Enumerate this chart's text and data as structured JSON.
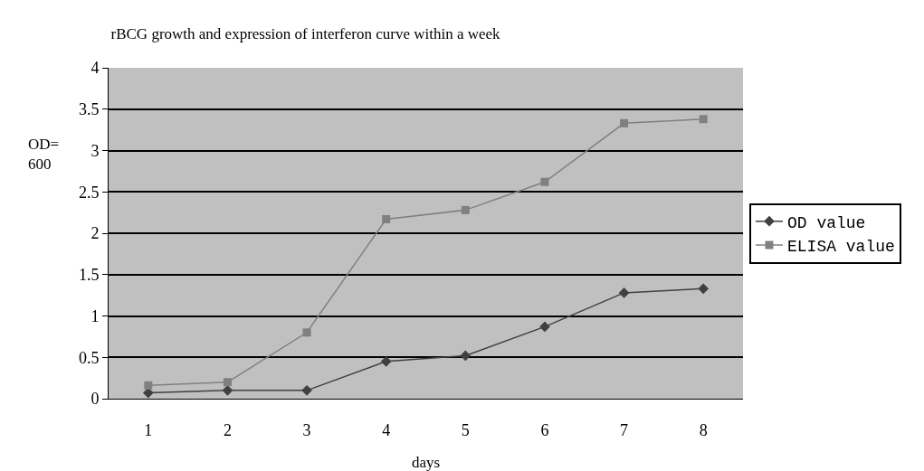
{
  "chart_data": {
    "type": "line",
    "title": "rBCG growth and expression of interferon curve within a week",
    "xlabel": "days",
    "ylabel": "OD=\n600",
    "categories": [
      "1",
      "2",
      "3",
      "4",
      "5",
      "6",
      "7",
      "8"
    ],
    "series": [
      {
        "name": "OD value",
        "color": "#404040",
        "marker": "diamond",
        "values": [
          0.07,
          0.1,
          0.1,
          0.45,
          0.52,
          0.87,
          1.28,
          1.33
        ]
      },
      {
        "name": "ELISA value",
        "color": "#808080",
        "marker": "square",
        "values": [
          0.16,
          0.2,
          0.8,
          2.17,
          2.28,
          2.62,
          3.33,
          3.38
        ]
      }
    ],
    "ylim": [
      0,
      4
    ],
    "yticks": [
      0,
      0.5,
      1,
      1.5,
      2,
      2.5,
      3,
      3.5,
      4
    ],
    "grid": "y",
    "legend": "right"
  }
}
